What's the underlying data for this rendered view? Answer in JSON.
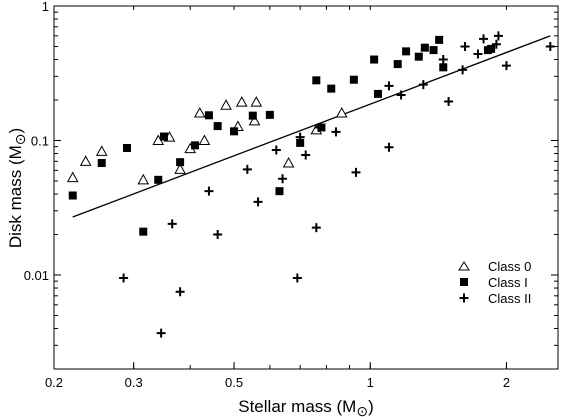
{
  "chart_data": {
    "type": "scatter",
    "xlabel": "Stellar mass (M",
    "ylabel": "Disk mass (M",
    "unit_symbol": "⊙",
    "xscale": "log",
    "yscale": "log",
    "xlim": [
      0.2,
      2.6
    ],
    "ylim": [
      0.002,
      1.0
    ],
    "xticks": [
      {
        "value": 0.2,
        "label": "0.2"
      },
      {
        "value": 0.3,
        "label": "0.3"
      },
      {
        "value": 0.5,
        "label": "0.5"
      },
      {
        "value": 1,
        "label": "1"
      },
      {
        "value": 2,
        "label": "2"
      }
    ],
    "yticks": [
      {
        "value": 0.01,
        "label": "0.01"
      },
      {
        "value": 0.1,
        "label": "0.1"
      },
      {
        "value": 1,
        "label": "1"
      }
    ],
    "legend_position": "bottom-right",
    "series": [
      {
        "name": "Class 0",
        "marker": "open-triangle",
        "points": [
          [
            0.22,
            0.053
          ],
          [
            0.235,
            0.07
          ],
          [
            0.255,
            0.083
          ],
          [
            0.315,
            0.051
          ],
          [
            0.34,
            0.1
          ],
          [
            0.36,
            0.106
          ],
          [
            0.38,
            0.061
          ],
          [
            0.4,
            0.087
          ],
          [
            0.42,
            0.16
          ],
          [
            0.43,
            0.1
          ],
          [
            0.48,
            0.183
          ],
          [
            0.51,
            0.127
          ],
          [
            0.52,
            0.193
          ],
          [
            0.555,
            0.14
          ],
          [
            0.56,
            0.193
          ],
          [
            0.66,
            0.068
          ],
          [
            0.76,
            0.12
          ],
          [
            0.865,
            0.16
          ]
        ]
      },
      {
        "name": "Class I",
        "marker": "filled-square",
        "points": [
          [
            0.22,
            0.039
          ],
          [
            0.255,
            0.068
          ],
          [
            0.29,
            0.088
          ],
          [
            0.315,
            0.021
          ],
          [
            0.34,
            0.051
          ],
          [
            0.35,
            0.107
          ],
          [
            0.38,
            0.069
          ],
          [
            0.41,
            0.092
          ],
          [
            0.44,
            0.154
          ],
          [
            0.46,
            0.128
          ],
          [
            0.5,
            0.117
          ],
          [
            0.55,
            0.153
          ],
          [
            0.6,
            0.155
          ],
          [
            0.63,
            0.042
          ],
          [
            0.7,
            0.096
          ],
          [
            0.76,
            0.28
          ],
          [
            0.78,
            0.125
          ],
          [
            0.82,
            0.243
          ],
          [
            0.92,
            0.283
          ],
          [
            1.02,
            0.4
          ],
          [
            1.04,
            0.222
          ],
          [
            1.15,
            0.37
          ],
          [
            1.2,
            0.46
          ],
          [
            1.28,
            0.42
          ],
          [
            1.32,
            0.49
          ],
          [
            1.38,
            0.47
          ],
          [
            1.42,
            0.56
          ],
          [
            1.45,
            0.35
          ],
          [
            1.82,
            0.47
          ],
          [
            1.85,
            0.48
          ]
        ]
      },
      {
        "name": "Class II",
        "marker": "plus",
        "points": [
          [
            0.285,
            0.0095
          ],
          [
            0.345,
            0.0037
          ],
          [
            0.365,
            0.024
          ],
          [
            0.38,
            0.0075
          ],
          [
            0.44,
            0.042
          ],
          [
            0.46,
            0.02
          ],
          [
            0.535,
            0.061
          ],
          [
            0.565,
            0.035
          ],
          [
            0.62,
            0.085
          ],
          [
            0.64,
            0.052
          ],
          [
            0.69,
            0.0095
          ],
          [
            0.7,
            0.106
          ],
          [
            0.72,
            0.078
          ],
          [
            0.76,
            0.0225
          ],
          [
            0.77,
            0.125
          ],
          [
            0.84,
            0.116
          ],
          [
            0.93,
            0.058
          ],
          [
            1.1,
            0.255
          ],
          [
            1.1,
            0.089
          ],
          [
            1.17,
            0.218
          ],
          [
            1.31,
            0.26
          ],
          [
            1.45,
            0.4
          ],
          [
            1.49,
            0.195
          ],
          [
            1.6,
            0.335
          ],
          [
            1.62,
            0.5
          ],
          [
            1.73,
            0.44
          ],
          [
            1.78,
            0.57
          ],
          [
            1.9,
            0.52
          ],
          [
            1.92,
            0.6
          ],
          [
            2.0,
            0.36
          ],
          [
            2.5,
            0.5
          ]
        ]
      }
    ],
    "fit_line": {
      "x": [
        0.22,
        2.5
      ],
      "y": [
        0.027,
        0.6
      ]
    }
  }
}
